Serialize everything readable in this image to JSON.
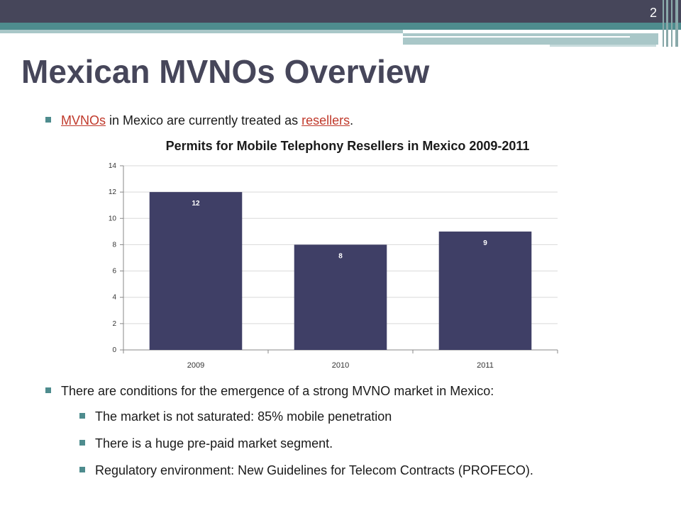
{
  "slide": {
    "number": "2",
    "title": "Mexican MVNOs Overview"
  },
  "colors": {
    "header": "#46465a",
    "accent": "#4e8c8e",
    "bar": "#3f3f66",
    "link": "#c0392b"
  },
  "intro_bullet": {
    "link1": "MVNOs",
    "text1": " in Mexico are currently treated as ",
    "link2": "resellers",
    "text2": "."
  },
  "chart_data": {
    "type": "bar",
    "title": "Permits for Mobile Telephony Resellers in Mexico 2009-2011",
    "categories": [
      "2009",
      "2010",
      "2011"
    ],
    "values": [
      12,
      8,
      9
    ],
    "data_labels": [
      "12",
      "8",
      "9"
    ],
    "ylim": [
      0,
      14
    ],
    "yticks": [
      0,
      2,
      4,
      6,
      8,
      10,
      12,
      14
    ],
    "ytick_labels": [
      "0",
      "2",
      "4",
      "6",
      "8",
      "10",
      "12",
      "14"
    ],
    "grid": true,
    "legend": "none"
  },
  "bullets": {
    "main": "There are conditions for the emergence of a strong MVNO market in Mexico:",
    "sub": [
      "The market is not saturated: 85% mobile penetration",
      "There is a huge pre-paid  market segment.",
      "Regulatory environment: New Guidelines for Telecom Contracts (PROFECO)."
    ]
  }
}
